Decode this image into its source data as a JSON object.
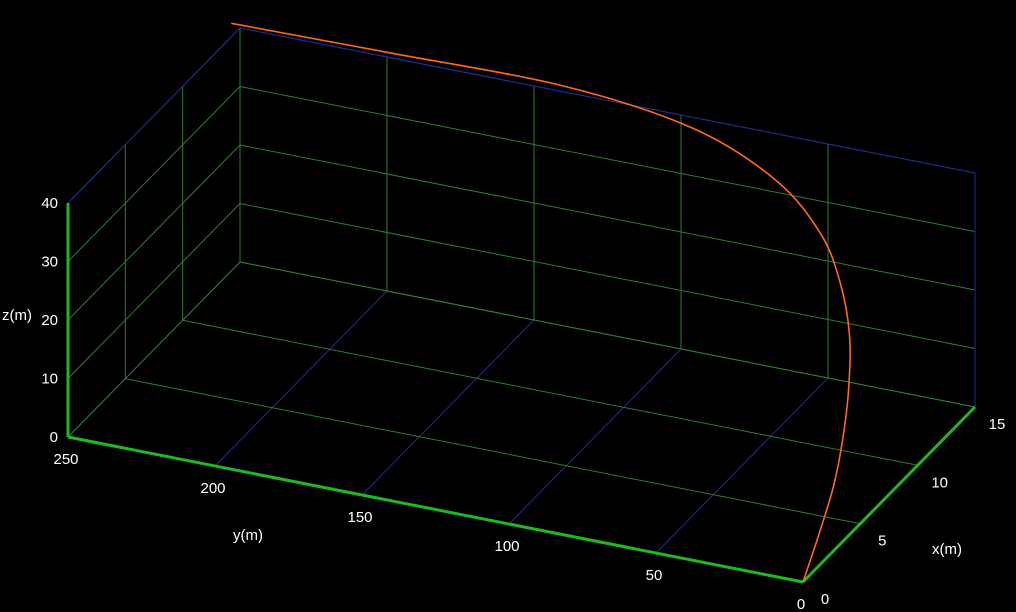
{
  "chart_data": {
    "type": "line",
    "projection": "3d",
    "title": "",
    "xlabel": "x(m)",
    "ylabel": "y(m)",
    "zlabel": "z(m)",
    "xlim": [
      0,
      15
    ],
    "ylim": [
      0,
      250
    ],
    "zlim": [
      0,
      40
    ],
    "x_ticks": [
      "0",
      "5",
      "10",
      "15"
    ],
    "y_ticks": [
      "0",
      "50",
      "100",
      "150",
      "200",
      "250"
    ],
    "z_ticks": [
      "0",
      "10",
      "20",
      "30",
      "40"
    ],
    "grid": true,
    "series": [
      {
        "color": "#ff6a1a",
        "points": [
          {
            "x": 0.0,
            "y": 0.0,
            "z": 0.0
          },
          {
            "x": 1.5,
            "y": 0.5,
            "z": 5.0
          },
          {
            "x": 3.2,
            "y": 2.0,
            "z": 10.0
          },
          {
            "x": 4.8,
            "y": 5.0,
            "z": 15.0
          },
          {
            "x": 6.3,
            "y": 9.0,
            "z": 20.0
          },
          {
            "x": 7.9,
            "y": 15.0,
            "z": 25.0
          },
          {
            "x": 9.4,
            "y": 24.0,
            "z": 30.0
          },
          {
            "x": 11.0,
            "y": 37.0,
            "z": 34.0
          },
          {
            "x": 12.5,
            "y": 58.0,
            "z": 38.0
          },
          {
            "x": 14.0,
            "y": 92.0,
            "z": 40.5
          },
          {
            "x": 15.0,
            "y": 140.0,
            "z": 41.0
          },
          {
            "x": 15.0,
            "y": 200.0,
            "z": 40.8
          },
          {
            "x": 15.0,
            "y": 253.0,
            "z": 40.5
          }
        ]
      }
    ]
  },
  "colors": {
    "background": "#000000",
    "grid_green": "#2e7d32",
    "grid_blue": "#1f2f8f",
    "axis_green": "#1fb81f",
    "curve": "#ff6a1a",
    "text": "#ffffff"
  }
}
